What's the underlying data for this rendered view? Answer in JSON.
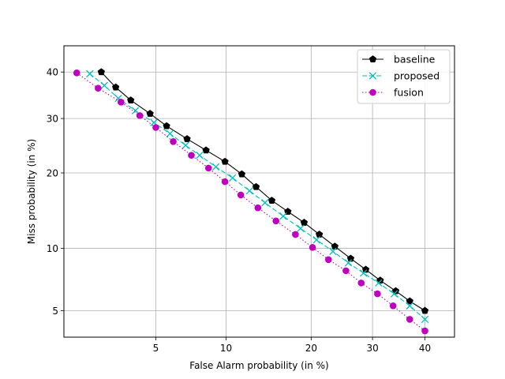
{
  "chart_data": {
    "type": "line",
    "title": "",
    "xlabel": "False Alarm probability (in %)",
    "ylabel": "Miss probability (in %)",
    "x_scale": "probit",
    "y_scale": "probit",
    "xlim": [
      1.7,
      46
    ],
    "ylim": [
      3.6,
      46
    ],
    "xticks": [
      5,
      10,
      20,
      30,
      40
    ],
    "xtick_labels": [
      "5",
      "10",
      "20",
      "30",
      "40"
    ],
    "yticks": [
      5,
      10,
      20,
      30,
      40
    ],
    "ytick_labels": [
      "5",
      "10",
      "20",
      "30",
      "40"
    ],
    "grid": true,
    "legend_position": "top-right",
    "series": [
      {
        "name": "baseline",
        "color": "#000000",
        "line_style": "solid",
        "marker": "pentagon",
        "points": [
          [
            2.7,
            40.0
          ],
          [
            3.2,
            36.6
          ],
          [
            3.8,
            33.8
          ],
          [
            4.7,
            31.0
          ],
          [
            5.6,
            28.5
          ],
          [
            6.9,
            26.0
          ],
          [
            8.3,
            23.9
          ],
          [
            9.9,
            21.9
          ],
          [
            11.5,
            19.8
          ],
          [
            13.0,
            17.8
          ],
          [
            14.8,
            15.8
          ],
          [
            16.8,
            14.3
          ],
          [
            19.0,
            12.9
          ],
          [
            21.2,
            11.5
          ],
          [
            23.6,
            10.2
          ],
          [
            26.2,
            9.0
          ],
          [
            28.8,
            8.0
          ],
          [
            31.4,
            7.1
          ],
          [
            34.3,
            6.3
          ],
          [
            37.0,
            5.6
          ],
          [
            40.0,
            5.0
          ]
        ]
      },
      {
        "name": "proposed",
        "color": "#00BFBF",
        "line_style": "dashed",
        "marker": "x",
        "points": [
          [
            2.35,
            39.6
          ],
          [
            2.8,
            37.0
          ],
          [
            3.3,
            34.2
          ],
          [
            4.0,
            31.6
          ],
          [
            4.9,
            29.2
          ],
          [
            5.8,
            27.0
          ],
          [
            6.8,
            24.8
          ],
          [
            7.8,
            23.0
          ],
          [
            9.1,
            21.0
          ],
          [
            10.6,
            19.2
          ],
          [
            12.3,
            17.2
          ],
          [
            14.0,
            15.5
          ],
          [
            16.2,
            13.7
          ],
          [
            18.5,
            12.2
          ],
          [
            20.8,
            10.9
          ],
          [
            23.3,
            9.7
          ],
          [
            25.8,
            8.6
          ],
          [
            28.4,
            7.7
          ],
          [
            31.1,
            6.9
          ],
          [
            34.0,
            6.1
          ],
          [
            37.0,
            5.3
          ],
          [
            40.0,
            4.5
          ]
        ]
      },
      {
        "name": "fusion",
        "color": "#BF00BF",
        "line_style": "dotted",
        "marker": "circle",
        "points": [
          [
            2.0,
            39.8
          ],
          [
            2.6,
            36.4
          ],
          [
            3.4,
            33.4
          ],
          [
            4.2,
            30.6
          ],
          [
            5.0,
            28.2
          ],
          [
            6.0,
            25.5
          ],
          [
            7.2,
            23.0
          ],
          [
            8.5,
            20.8
          ],
          [
            9.9,
            18.6
          ],
          [
            11.4,
            16.6
          ],
          [
            13.2,
            14.8
          ],
          [
            15.3,
            13.1
          ],
          [
            17.8,
            11.5
          ],
          [
            20.2,
            10.1
          ],
          [
            22.6,
            8.9
          ],
          [
            25.4,
            7.9
          ],
          [
            28.0,
            6.9
          ],
          [
            30.9,
            6.1
          ],
          [
            33.8,
            5.3
          ],
          [
            37.0,
            4.5
          ],
          [
            40.0,
            3.9
          ]
        ]
      }
    ]
  }
}
